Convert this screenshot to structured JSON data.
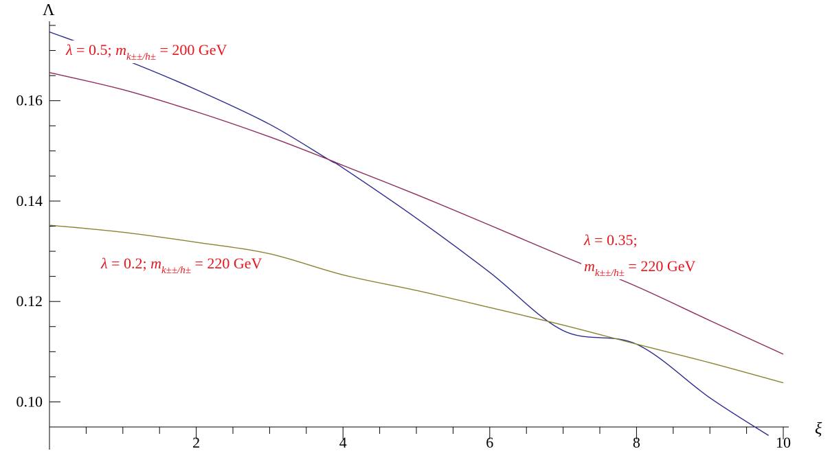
{
  "chart_data": {
    "type": "line",
    "xlabel": "ξ",
    "ylabel": "Λ",
    "xlim": [
      0,
      10
    ],
    "ylim": [
      0.095,
      0.175
    ],
    "x_ticks": [
      2,
      4,
      6,
      8,
      10
    ],
    "y_ticks": [
      0.1,
      0.12,
      0.14,
      0.16
    ],
    "x_tick_labels": [
      "2",
      "4",
      "6",
      "8",
      "10"
    ],
    "y_tick_labels": [
      "0.10",
      "0.12",
      "0.14",
      "0.16"
    ],
    "grid": false,
    "series": [
      {
        "color": "#2b2b8f",
        "x": [
          0,
          1,
          2,
          3,
          3.8,
          4,
          5,
          6,
          7,
          8,
          9,
          9.8
        ],
        "y": [
          0.1737,
          0.1683,
          0.1622,
          0.1553,
          0.1483,
          0.1466,
          0.1366,
          0.1258,
          0.1142,
          0.1115,
          0.1008,
          0.0933
        ]
      },
      {
        "color": "#8f2b5e",
        "x": [
          0,
          1,
          2,
          3,
          3.8,
          4,
          5,
          6,
          7,
          8,
          9,
          10
        ],
        "y": [
          0.1656,
          0.1622,
          0.1578,
          0.1528,
          0.1483,
          0.1471,
          0.1413,
          0.1352,
          0.129,
          0.123,
          0.1162,
          0.1095
        ]
      },
      {
        "color": "#8a8330",
        "x": [
          0,
          1,
          2,
          3,
          4,
          5,
          6,
          7,
          8,
          9,
          10
        ],
        "y": [
          0.1352,
          0.1338,
          0.1318,
          0.1295,
          0.1253,
          0.1222,
          0.1188,
          0.1153,
          0.1115,
          0.1078,
          0.1038
        ]
      }
    ],
    "annotations": [
      {
        "lambda": "λ",
        "eq1": " = 0.5; ",
        "m": "m",
        "sub": "k±±/h±",
        "eq2": " = 200 GeV",
        "color": "#e8141c"
      },
      {
        "lambda": "λ",
        "eq1": " = 0.2; ",
        "m": "m",
        "sub": "k±±/h±",
        "eq2": " = 220 GeV",
        "color": "#e8141c"
      },
      {
        "lambda": "λ",
        "eq1": " = 0.35;",
        "m": "m",
        "sub": "k±±/h±",
        "eq2": " = 220 GeV",
        "color": "#e8141c"
      }
    ]
  }
}
